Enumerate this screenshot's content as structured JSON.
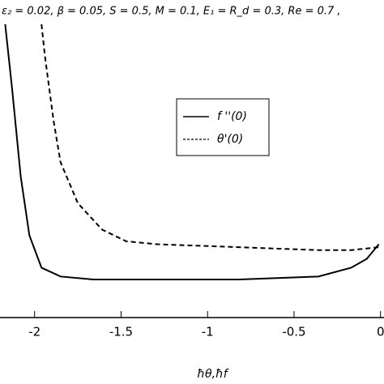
{
  "chart_data": {
    "type": "line",
    "title": "ε₂ = 0.02, β = 0.05, S = 0.5, M = 0.1, E₁ = R_d = 0.3, Re = 0.7 ,",
    "x_label": "ħθ,ħf",
    "xlim": [
      -2.2,
      0.02
    ],
    "ylim": [
      0,
      1
    ],
    "xticks": [
      -2,
      -1.5,
      -1,
      -0.5,
      0
    ],
    "legend": "center",
    "series": [
      {
        "name": "f ''(0)",
        "color": "#000000",
        "dash": "solid",
        "x": [
          -2.17,
          -2.13,
          -2.08,
          -2.03,
          -1.96,
          -1.85,
          -1.66,
          -1.29,
          -0.82,
          -0.36,
          -0.17,
          -0.08,
          -0.01
        ],
        "values": [
          1.0,
          0.78,
          0.48,
          0.28,
          0.17,
          0.14,
          0.13,
          0.13,
          0.13,
          0.14,
          0.17,
          0.2,
          0.25
        ]
      },
      {
        "name": "θ'(0)",
        "color": "#000000",
        "dash": "dashed",
        "x": [
          -1.96,
          -1.94,
          -1.89,
          -1.85,
          -1.75,
          -1.61,
          -1.47,
          -1.29,
          -0.82,
          -0.36,
          -0.17,
          -0.01
        ],
        "values": [
          1.0,
          0.89,
          0.67,
          0.53,
          0.39,
          0.3,
          0.26,
          0.25,
          0.24,
          0.23,
          0.23,
          0.24
        ]
      }
    ]
  }
}
